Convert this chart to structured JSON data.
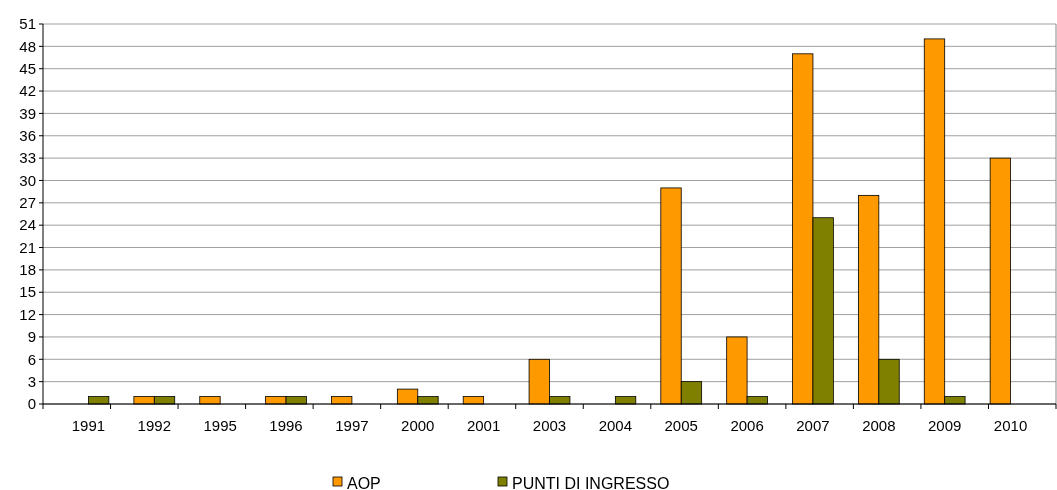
{
  "chart_data": {
    "type": "bar",
    "categories": [
      "1991",
      "1992",
      "1995",
      "1996",
      "1997",
      "2000",
      "2001",
      "2003",
      "2004",
      "2005",
      "2006",
      "2007",
      "2008",
      "2009",
      "2010"
    ],
    "series": [
      {
        "name": "AOP",
        "color": "#ff9900",
        "values": [
          0,
          1,
          1,
          1,
          1,
          2,
          1,
          6,
          0,
          29,
          9,
          47,
          28,
          49,
          33
        ]
      },
      {
        "name": "PUNTI DI INGRESSO",
        "color": "#808000",
        "values": [
          1,
          1,
          0,
          1,
          0,
          1,
          0,
          1,
          1,
          3,
          1,
          25,
          6,
          1,
          0
        ]
      }
    ],
    "ylim": [
      0,
      51
    ],
    "yticks": [
      0,
      3,
      6,
      9,
      12,
      15,
      18,
      21,
      24,
      27,
      30,
      33,
      36,
      39,
      42,
      45,
      48,
      51
    ],
    "grid": "y",
    "legend": "bottom"
  }
}
